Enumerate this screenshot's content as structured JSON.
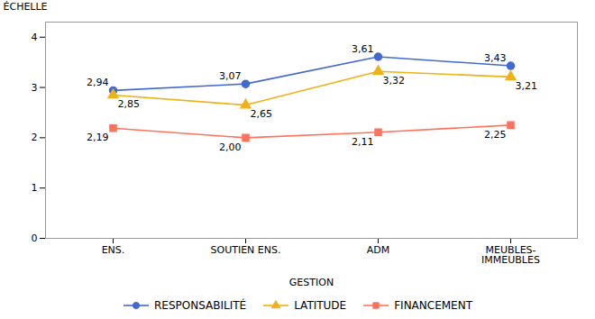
{
  "chart_data": {
    "type": "line",
    "categories": [
      "ENS.",
      "SOUTIEN ENS.",
      "ADM",
      "MEUBLES-\nIMMEUBLES"
    ],
    "series": [
      {
        "name": "RESPONSABILITÉ",
        "values": [
          2.94,
          3.07,
          3.61,
          3.43
        ],
        "value_labels": [
          "2,94",
          "3,07",
          "3,61",
          "3,43"
        ],
        "marker": "circle"
      },
      {
        "name": "LATITUDE",
        "values": [
          2.85,
          2.65,
          3.32,
          3.21
        ],
        "value_labels": [
          "2,85",
          "2,65",
          "3,32",
          "3,21"
        ],
        "marker": "triangle"
      },
      {
        "name": "FINANCEMENT",
        "values": [
          2.19,
          2.0,
          2.11,
          2.25
        ],
        "value_labels": [
          "2,19",
          "2,00",
          "2,11",
          "2,25"
        ],
        "marker": "square"
      }
    ],
    "xlabel": "GESTION",
    "ylabel": "ÉCHELLE",
    "ylim": [
      0,
      4.3
    ],
    "yticks": [
      0,
      1,
      2,
      3,
      4
    ],
    "grid": false,
    "legend": "bottom",
    "data_labels": true
  }
}
